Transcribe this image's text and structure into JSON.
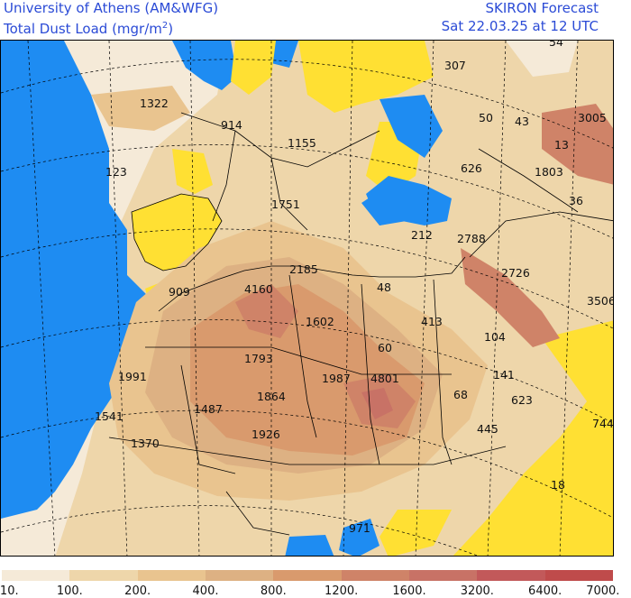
{
  "header": {
    "org_title": "University of Athens (AM&WFG)",
    "product_title": "Total Dust Load (mgr/m",
    "product_unit_exp": "2",
    "product_title_end": ")",
    "forecast_label": "SKIRON Forecast",
    "valid_time": "Sat 22.03.25 at 12 UTC"
  },
  "colors": {
    "sea": "#1e8cf2",
    "clean_land": "#ffe033",
    "border_lines": "#000000",
    "grid_lines": "#000000",
    "header_text": "#2b4bd6"
  },
  "legend": {
    "colors": [
      "#f5ead8",
      "#eed6aa",
      "#e9c48f",
      "#ddb183",
      "#d99a6d",
      "#cf8368",
      "#c87266",
      "#c2595a",
      "#bf4b4b"
    ],
    "ticks": [
      "10.",
      "100.",
      "200.",
      "400.",
      "800.",
      "1200.",
      "1600.",
      "3200.",
      "6400.",
      "7000."
    ]
  },
  "map_values": [
    "1322",
    "914",
    "1155",
    "307",
    "54",
    "50",
    "43",
    "3005",
    "13",
    "123",
    "626",
    "1803",
    "1751",
    "36",
    "212",
    "2788",
    "2185",
    "2726",
    "909",
    "4160",
    "48",
    "3506",
    "1602",
    "413",
    "104",
    "60",
    "1793",
    "1991",
    "1987",
    "4801",
    "141",
    "1864",
    "68",
    "623",
    "1541",
    "1487",
    "1926",
    "445",
    "744",
    "1370",
    "18",
    "971"
  ]
}
